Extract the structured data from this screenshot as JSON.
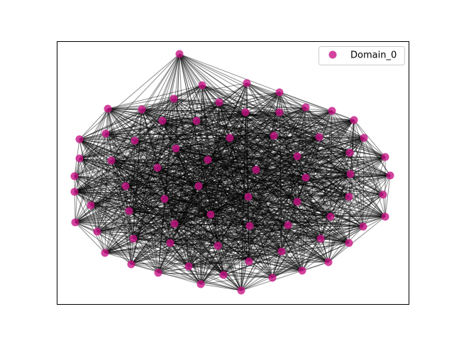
{
  "legend": {
    "label": "Domain_0",
    "color": "#c71585"
  }
}
